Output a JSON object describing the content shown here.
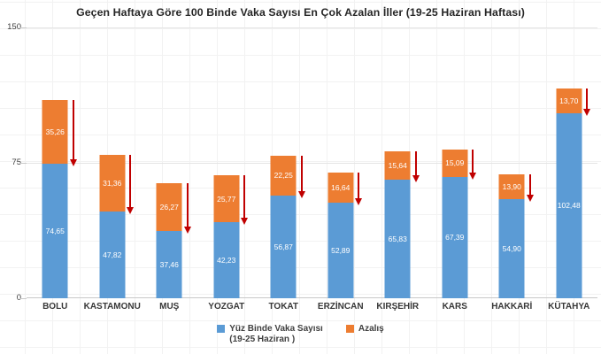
{
  "title": "Geçen Haftaya Göre 100 Binde Vaka Sayısı En Çok Azalan İller (19-25 Haziran Haftası)",
  "colors": {
    "bar_blue": "#5B9BD5",
    "bar_orange": "#ED7D31",
    "arrow_red": "#C00000",
    "grid_faint": "#f2f2f2",
    "axis_line": "#c9c9c9",
    "text_dark": "#404040",
    "value_label": "#ffffff"
  },
  "y_axis": {
    "ticks": [
      "150",
      "75",
      "0"
    ]
  },
  "legend": {
    "series1_line1": "Yüz Binde Vaka Sayısı",
    "series1_line2": "(19-25 Haziran )",
    "series2": "Azalış"
  },
  "chart_data": {
    "type": "bar",
    "stacked": true,
    "title": "Geçen Haftaya Göre 100 Binde Vaka Sayısı En Çok Azalan İller (19-25 Haziran Haftası)",
    "categories": [
      "BOLU",
      "KASTAMONU",
      "MUŞ",
      "YOZGAT",
      "TOKAT",
      "ERZİNCAN",
      "KIRŞEHİR",
      "KARS",
      "HAKKARİ",
      "KÜTAHYA"
    ],
    "series": [
      {
        "name": "Yüz Binde Vaka Sayısı (19-25 Haziran )",
        "color": "#5B9BD5",
        "values": [
          74.65,
          47.82,
          37.46,
          42.23,
          56.87,
          52.89,
          65.83,
          67.39,
          54.9,
          102.48
        ],
        "labels": [
          "74,65",
          "47,82",
          "37,46",
          "42,23",
          "56,87",
          "52,89",
          "65,83",
          "67,39",
          "54,90",
          "102,48"
        ]
      },
      {
        "name": "Azalış",
        "color": "#ED7D31",
        "values": [
          35.26,
          31.36,
          26.27,
          25.77,
          22.25,
          16.64,
          15.64,
          15.09,
          13.9,
          13.7
        ],
        "labels": [
          "35,26",
          "31,36",
          "26,27",
          "25,77",
          "22,25",
          "16,64",
          "15,64",
          "15,09",
          "13,90",
          "13,70"
        ]
      }
    ],
    "ylim": [
      0,
      150
    ],
    "yticks": [
      0,
      75,
      150
    ],
    "grid": "faint worksheet grid behind transparent plot area",
    "legend_position": "bottom-center",
    "annotations": "red downward arrow beside each bar's Azalış segment indicating decrease"
  }
}
